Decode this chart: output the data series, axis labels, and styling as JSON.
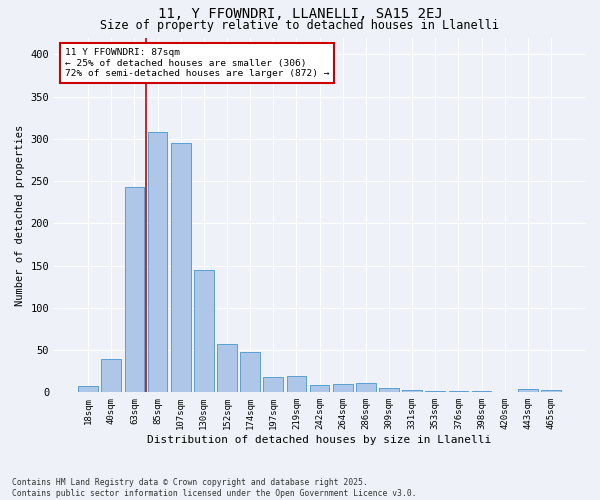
{
  "title1": "11, Y FFOWNDRI, LLANELLI, SA15 2EJ",
  "title2": "Size of property relative to detached houses in Llanelli",
  "xlabel": "Distribution of detached houses by size in Llanelli",
  "ylabel": "Number of detached properties",
  "categories": [
    "18sqm",
    "40sqm",
    "63sqm",
    "85sqm",
    "107sqm",
    "130sqm",
    "152sqm",
    "174sqm",
    "197sqm",
    "219sqm",
    "242sqm",
    "264sqm",
    "286sqm",
    "309sqm",
    "331sqm",
    "353sqm",
    "376sqm",
    "398sqm",
    "420sqm",
    "443sqm",
    "465sqm"
  ],
  "values": [
    8,
    39,
    243,
    308,
    295,
    145,
    57,
    48,
    18,
    19,
    9,
    10,
    11,
    5,
    3,
    2,
    1,
    1,
    0,
    4,
    3
  ],
  "bar_color": "#aec6e8",
  "bar_edge_color": "#5a9fd4",
  "vline_x_index": 3,
  "vline_color": "#cc0000",
  "annotation_text": "11 Y FFOWNDRI: 87sqm\n← 25% of detached houses are smaller (306)\n72% of semi-detached houses are larger (872) →",
  "annotation_box_color": "#ffffff",
  "annotation_box_edge": "#cc0000",
  "ylim": [
    0,
    420
  ],
  "yticks": [
    0,
    50,
    100,
    150,
    200,
    250,
    300,
    350,
    400
  ],
  "footnote": "Contains HM Land Registry data © Crown copyright and database right 2025.\nContains public sector information licensed under the Open Government Licence v3.0.",
  "bg_color": "#eef2f8",
  "grid_color": "#ffffff"
}
